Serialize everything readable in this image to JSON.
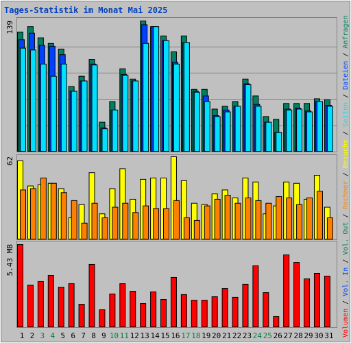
{
  "chart_data": [
    {
      "type": "bar",
      "title": "Tages-Statistik im Monat Mai 2025",
      "ylim": [
        0,
        139
      ],
      "yticks": [
        139
      ],
      "series": [
        {
          "name": "Anfragen",
          "color": "#008060",
          "values": [
            127,
            133,
            121,
            115,
            109,
            69,
            80,
            98,
            31,
            53,
            88,
            77,
            139,
            133,
            123,
            106,
            123,
            66,
            66,
            45,
            48,
            53,
            77,
            59,
            37,
            34,
            51,
            51,
            51,
            56,
            55
          ]
        },
        {
          "name": "Dateien",
          "color": "#0040ff",
          "values": [
            119,
            126,
            113,
            112,
            103,
            64,
            75,
            93,
            25,
            44,
            82,
            75,
            135,
            133,
            118,
            95,
            116,
            64,
            59,
            38,
            44,
            48,
            72,
            50,
            31,
            20,
            45,
            46,
            43,
            53,
            49
          ]
        },
        {
          "name": "Seiten",
          "color": "#00e0ff",
          "values": [
            110,
            108,
            93,
            80,
            93,
            64,
            75,
            92,
            24,
            44,
            81,
            75,
            115,
            133,
            118,
            93,
            116,
            63,
            53,
            37,
            42,
            48,
            71,
            48,
            31,
            20,
            44,
            45,
            42,
            53,
            48
          ]
        }
      ]
    },
    {
      "type": "bar",
      "ylim": [
        0,
        62
      ],
      "yticks": [
        62
      ],
      "series": [
        {
          "name": "Besuche",
          "color": "#ffff00",
          "values": [
            59,
            40,
            41,
            42,
            38,
            16,
            26,
            50,
            19,
            38,
            53,
            30,
            45,
            46,
            46,
            62,
            44,
            27,
            26,
            34,
            37,
            31,
            46,
            43,
            19,
            25,
            43,
            42,
            30,
            48,
            24
          ]
        },
        {
          "name": "Rechner",
          "color": "#ff8000",
          "values": [
            37,
            38,
            46,
            42,
            35,
            29,
            12,
            27,
            16,
            24,
            27,
            20,
            25,
            23,
            23,
            29,
            16,
            14,
            25,
            30,
            33,
            27,
            31,
            29,
            27,
            32,
            31,
            26,
            31,
            36,
            16
          ]
        }
      ]
    },
    {
      "type": "bar",
      "ylim": [
        0,
        5.43
      ],
      "yticks": [
        {
          "value": 5.43,
          "label": "5.43 MB"
        }
      ],
      "categories": [
        "1",
        "2",
        "3",
        "4",
        "5",
        "6",
        "7",
        "8",
        "9",
        "10",
        "11",
        "12",
        "13",
        "14",
        "15",
        "16",
        "17",
        "18",
        "19",
        "20",
        "21",
        "22",
        "23",
        "24",
        "25",
        "26",
        "27",
        "28",
        "29",
        "30",
        "31"
      ],
      "category_colors": [
        "#000000",
        "#000000",
        "#008040",
        "#008040",
        "#000000",
        "#000000",
        "#000000",
        "#000000",
        "#000000",
        "#008040",
        "#008040",
        "#000000",
        "#000000",
        "#000000",
        "#000000",
        "#000000",
        "#008040",
        "#008040",
        "#000000",
        "#000000",
        "#000000",
        "#000000",
        "#000000",
        "#008040",
        "#008040",
        "#000000",
        "#000000",
        "#000000",
        "#000000",
        "#000000",
        "#000000"
      ],
      "series": [
        {
          "name": "Volumen",
          "color": "#ff0000",
          "values": [
            5.43,
            2.76,
            2.99,
            3.39,
            2.62,
            2.85,
            1.49,
            4.12,
            1.13,
            2.17,
            2.85,
            2.35,
            1.54,
            2.31,
            1.81,
            3.26,
            2.13,
            1.76,
            1.76,
            1.99,
            2.53,
            1.95,
            2.81,
            4.03,
            2.26,
            0.68,
            4.75,
            4.25,
            3.17,
            3.53,
            3.35
          ]
        }
      ],
      "extra_legend": [
        {
          "name": "Vol. In",
          "color": "#0040ff"
        },
        {
          "name": "Vol. Out",
          "color": "#008060"
        }
      ],
      "legend_separator": "/"
    }
  ]
}
